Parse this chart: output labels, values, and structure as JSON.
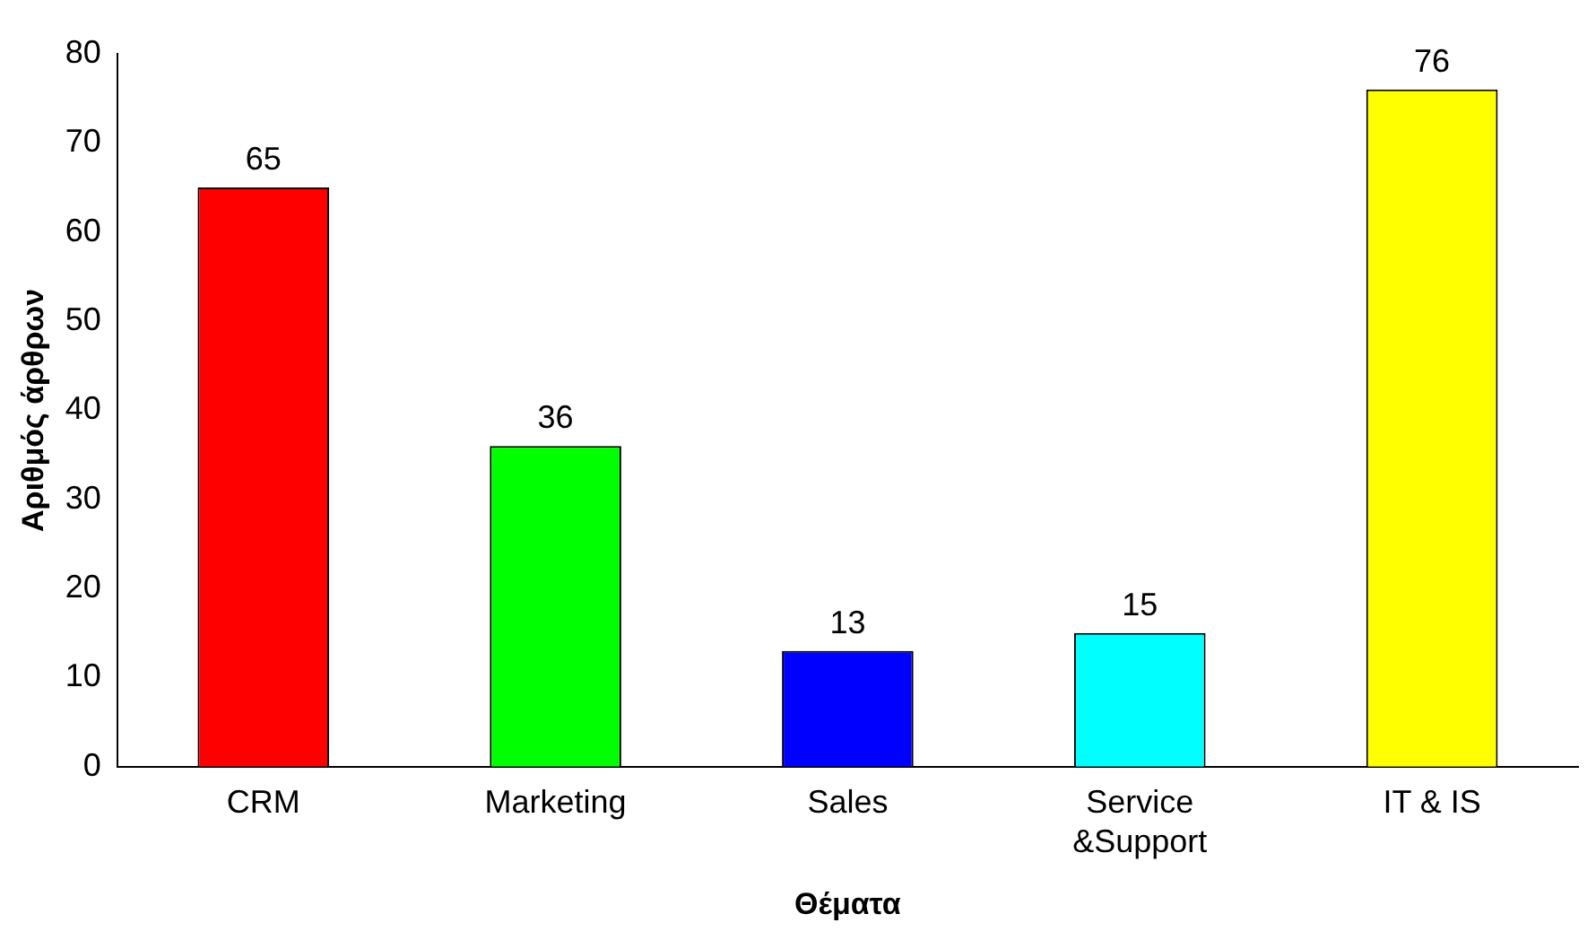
{
  "chart_data": {
    "type": "bar",
    "xlabel": "Θέματα",
    "ylabel": "Αριθμός άρθρων",
    "categories": [
      "CRM",
      "Marketing",
      "Sales",
      "Service\n&Support",
      "IT & IS"
    ],
    "values": [
      65,
      36,
      13,
      15,
      76
    ],
    "colors": [
      "#ff0000",
      "#00ff00",
      "#0000ff",
      "#00ffff",
      "#ffff00"
    ],
    "ylim": [
      0,
      80
    ],
    "yticks": [
      0,
      10,
      20,
      30,
      40,
      50,
      60,
      70,
      80
    ],
    "data_labels": true,
    "legend": false,
    "grid": false
  }
}
